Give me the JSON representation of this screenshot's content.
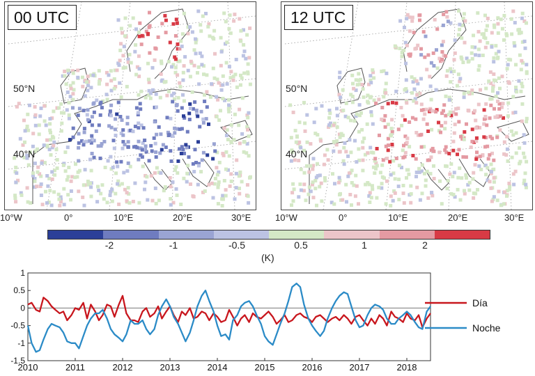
{
  "maps": {
    "left": {
      "label": "00 UTC"
    },
    "right": {
      "label": "12 UTC"
    },
    "lat_labels": [
      "50°N",
      "40°N"
    ],
    "lon_labels": [
      "10°W",
      "0°",
      "10°E",
      "20°E",
      "30°E"
    ]
  },
  "colorbar": {
    "colors": [
      "#2b3f98",
      "#6f7cbf",
      "#9aa4d3",
      "#bcc3e3",
      "#d4e8c6",
      "#ecc5c9",
      "#e49aa2",
      "#d83a45"
    ],
    "tick_labels": [
      "-2",
      "-1",
      "-0.5",
      "0.5",
      "1",
      "2"
    ],
    "unit": "(K)"
  },
  "chart_data": {
    "type": "line",
    "xlabel": "",
    "ylabel": "",
    "x_tick_labels": [
      "2010",
      "2011",
      "2012",
      "2013",
      "2014",
      "2015",
      "2016",
      "2017",
      "2018"
    ],
    "y_tick_labels": [
      "1",
      "0.5",
      "0",
      "-0.5",
      "-1",
      "-1.5"
    ],
    "xlim": [
      2010,
      2018.5
    ],
    "ylim": [
      -1.5,
      1
    ],
    "grid": false,
    "reference_line": 0,
    "legend_position": "right",
    "series": [
      {
        "name": "Día",
        "color": "#c8161d",
        "x": [
          2010.0,
          2010.08,
          2010.17,
          2010.25,
          2010.33,
          2010.42,
          2010.5,
          2010.58,
          2010.67,
          2010.75,
          2010.83,
          2010.92,
          2011.0,
          2011.08,
          2011.17,
          2011.25,
          2011.33,
          2011.42,
          2011.5,
          2011.58,
          2011.67,
          2011.75,
          2011.83,
          2011.92,
          2012.0,
          2012.08,
          2012.17,
          2012.25,
          2012.33,
          2012.42,
          2012.5,
          2012.58,
          2012.67,
          2012.75,
          2012.83,
          2012.92,
          2013.0,
          2013.08,
          2013.17,
          2013.25,
          2013.33,
          2013.42,
          2013.5,
          2013.58,
          2013.67,
          2013.75,
          2013.83,
          2013.92,
          2014.0,
          2014.08,
          2014.17,
          2014.25,
          2014.33,
          2014.42,
          2014.5,
          2014.58,
          2014.67,
          2014.75,
          2014.83,
          2014.92,
          2015.0,
          2015.08,
          2015.17,
          2015.25,
          2015.33,
          2015.42,
          2015.5,
          2015.58,
          2015.67,
          2015.75,
          2015.83,
          2015.92,
          2016.0,
          2016.08,
          2016.17,
          2016.25,
          2016.33,
          2016.42,
          2016.5,
          2016.58,
          2016.67,
          2016.75,
          2016.83,
          2016.92,
          2017.0,
          2017.08,
          2017.17,
          2017.25,
          2017.33,
          2017.42,
          2017.5,
          2017.58,
          2017.67,
          2017.75,
          2017.83,
          2017.92,
          2018.0,
          2018.08,
          2018.17,
          2018.25,
          2018.33,
          2018.42,
          2018.5
        ],
        "values": [
          0.1,
          0.15,
          -0.05,
          -0.1,
          0.3,
          0.2,
          0.05,
          -0.05,
          -0.15,
          -0.1,
          -0.35,
          -0.2,
          0.0,
          -0.05,
          0.15,
          -0.3,
          0.1,
          -0.1,
          -0.35,
          -0.2,
          0.1,
          0.05,
          -0.25,
          0.1,
          0.35,
          -0.15,
          -0.35,
          -0.35,
          -0.4,
          -0.1,
          0.0,
          -0.25,
          -0.15,
          0.05,
          -0.3,
          -0.1,
          0.05,
          -0.2,
          -0.4,
          -0.1,
          -0.2,
          0.0,
          -0.3,
          -0.25,
          -0.1,
          -0.15,
          -0.35,
          -0.15,
          -0.25,
          -0.4,
          -0.35,
          -0.05,
          -0.25,
          -0.5,
          -0.3,
          -0.2,
          -0.4,
          -0.15,
          -0.25,
          -0.3,
          -0.2,
          -0.1,
          -0.25,
          -0.45,
          -0.35,
          -0.2,
          -0.4,
          -0.35,
          -0.2,
          -0.15,
          -0.25,
          -0.3,
          -0.4,
          -0.25,
          -0.2,
          -0.3,
          -0.4,
          -0.3,
          -0.25,
          -0.35,
          -0.2,
          -0.3,
          -0.45,
          -0.25,
          -0.2,
          -0.35,
          -0.5,
          -0.3,
          -0.45,
          -0.2,
          -0.3,
          -0.5,
          -0.1,
          -0.25,
          -0.3,
          -0.4,
          -0.15,
          -0.3,
          -0.35,
          -0.2,
          -0.55,
          -0.3,
          -0.15
        ]
      },
      {
        "name": "Noche",
        "color": "#2b8bc7",
        "x": [
          2010.0,
          2010.08,
          2010.17,
          2010.25,
          2010.33,
          2010.42,
          2010.5,
          2010.58,
          2010.67,
          2010.75,
          2010.83,
          2010.92,
          2011.0,
          2011.08,
          2011.17,
          2011.25,
          2011.33,
          2011.42,
          2011.5,
          2011.58,
          2011.67,
          2011.75,
          2011.83,
          2011.92,
          2012.0,
          2012.08,
          2012.17,
          2012.25,
          2012.33,
          2012.42,
          2012.5,
          2012.58,
          2012.67,
          2012.75,
          2012.83,
          2012.92,
          2013.0,
          2013.08,
          2013.17,
          2013.25,
          2013.33,
          2013.42,
          2013.5,
          2013.58,
          2013.67,
          2013.75,
          2013.83,
          2013.92,
          2014.0,
          2014.08,
          2014.17,
          2014.25,
          2014.33,
          2014.42,
          2014.5,
          2014.58,
          2014.67,
          2014.75,
          2014.83,
          2014.92,
          2015.0,
          2015.08,
          2015.17,
          2015.25,
          2015.33,
          2015.42,
          2015.5,
          2015.58,
          2015.67,
          2015.75,
          2015.83,
          2015.92,
          2016.0,
          2016.08,
          2016.17,
          2016.25,
          2016.33,
          2016.42,
          2016.5,
          2016.58,
          2016.67,
          2016.75,
          2016.83,
          2016.92,
          2017.0,
          2017.08,
          2017.17,
          2017.25,
          2017.33,
          2017.42,
          2017.5,
          2017.58,
          2017.67,
          2017.75,
          2017.83,
          2017.92,
          2018.0,
          2018.08,
          2018.17,
          2018.25,
          2018.33,
          2018.42,
          2018.5
        ],
        "values": [
          -0.5,
          -1.0,
          -1.25,
          -1.2,
          -0.9,
          -0.6,
          -0.45,
          -0.5,
          -0.55,
          -0.7,
          -0.95,
          -1.0,
          -1.0,
          -1.15,
          -0.8,
          -0.5,
          -0.3,
          -0.15,
          -0.15,
          -0.05,
          -0.3,
          -0.6,
          -0.75,
          -0.85,
          -0.95,
          -0.75,
          -0.35,
          -0.45,
          -0.45,
          -0.35,
          -0.6,
          -0.75,
          -0.6,
          -0.2,
          0.05,
          0.25,
          0.05,
          -0.25,
          -0.45,
          -0.7,
          -0.95,
          -0.7,
          -0.35,
          0.05,
          0.35,
          0.5,
          0.2,
          -0.1,
          -0.5,
          -0.8,
          -0.75,
          -0.9,
          -0.35,
          -0.2,
          0.05,
          0.15,
          0.2,
          0.05,
          -0.2,
          -0.45,
          -0.8,
          -0.95,
          -1.05,
          -0.75,
          -0.45,
          -0.15,
          0.2,
          0.6,
          0.7,
          0.6,
          0.1,
          -0.3,
          -0.5,
          -0.65,
          -0.8,
          -0.65,
          -0.3,
          0.0,
          0.2,
          0.35,
          0.45,
          0.4,
          0.05,
          -0.35,
          -0.55,
          -0.5,
          -0.2,
          0.0,
          0.1,
          0.05,
          -0.05,
          -0.3,
          -0.45,
          -0.45,
          -0.3,
          -0.2,
          -0.1,
          -0.2,
          -0.4,
          -0.55,
          -0.6,
          -0.1,
          0.05
        ]
      }
    ]
  }
}
